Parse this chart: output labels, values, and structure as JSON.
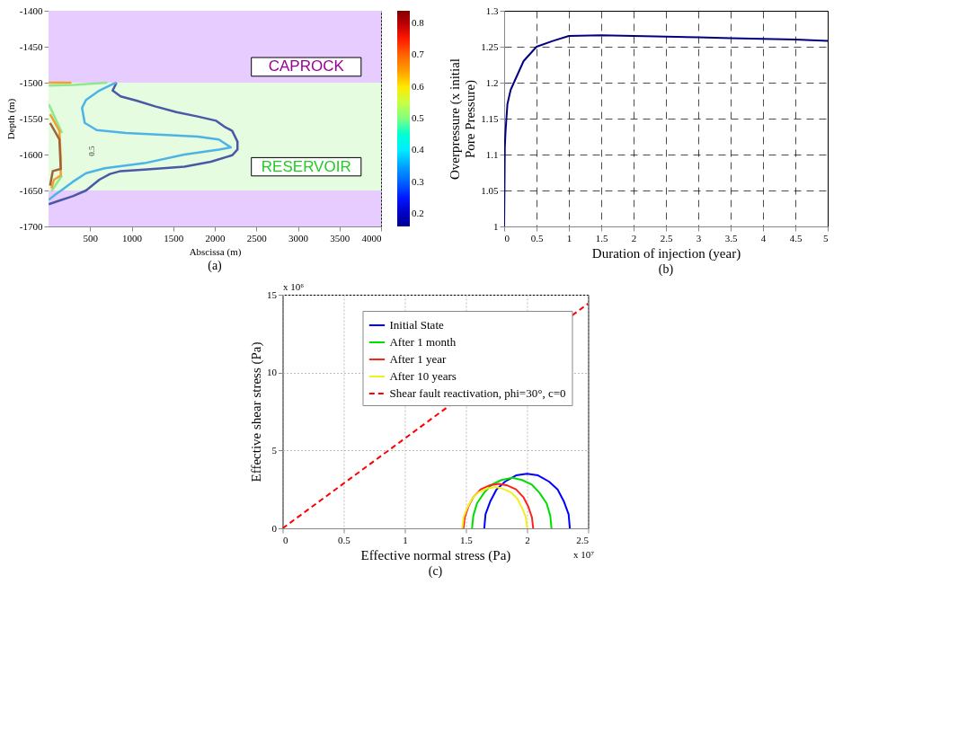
{
  "chart_data": [
    {
      "type": "line",
      "xlabel": "Abscissa (m)",
      "ylabel": "Depth (m)",
      "xlim": [
        0,
        4000
      ],
      "xticks": [
        500,
        1000,
        1500,
        2000,
        2500,
        3000,
        3500,
        4000
      ],
      "ylim": [
        -1700,
        -1400
      ],
      "yticks": [
        -1400,
        -1450,
        -1500,
        -1550,
        -1600,
        -1650,
        -1700
      ],
      "grid": true,
      "clim": [
        0.16,
        0.84
      ],
      "cticks": [
        0.2,
        0.3,
        0.4,
        0.5,
        0.6,
        0.7,
        0.8
      ],
      "bands": [
        {
          "axis": "y",
          "from": -1500,
          "to": -1400,
          "label": "CAPROCK",
          "color": "#e6ccff"
        },
        {
          "axis": "y",
          "from": -1650,
          "to": -1500,
          "label": "RESERVOIR",
          "color": "#e6fce0"
        },
        {
          "axis": "y",
          "from": -1700,
          "to": -1650,
          "color": "#e6ccff"
        }
      ],
      "annotations": [
        "0.5",
        "(a)"
      ],
      "series": [
        {
          "color": "#4a58a8",
          "x": [
            818,
            771,
            867,
            1058,
            1282,
            1538,
            1793,
            2017,
            2113,
            2209,
            2273,
            2273,
            2209,
            1953,
            1634,
            1154,
            867,
            739,
            611,
            515,
            451,
            291,
            131,
            3
          ],
          "values": [
            -1500,
            -1511,
            -1519,
            -1525,
            -1533,
            -1541,
            -1547,
            -1553,
            -1561,
            -1567,
            -1582,
            -1593,
            -1601,
            -1610,
            -1617,
            -1621,
            -1623,
            -1627,
            -1635,
            -1644,
            -1650,
            -1658,
            -1664,
            -1669
          ]
        },
        {
          "color": "#4db3e6",
          "x": [
            818,
            771,
            611,
            451,
            403,
            435,
            579,
            930,
            1474,
            1793,
            2049,
            2193,
            2049,
            1634,
            1154,
            675,
            451,
            291,
            163,
            67,
            3
          ],
          "values": [
            -1500,
            -1502,
            -1511,
            -1524,
            -1535,
            -1556,
            -1566,
            -1570,
            -1573,
            -1575,
            -1579,
            -1590,
            -1593,
            -1600,
            -1612,
            -1619,
            -1626,
            -1638,
            -1649,
            -1657,
            -1663
          ]
        },
        {
          "color": "#8fe88f",
          "x": [
            3,
            300,
            707
          ],
          "values": [
            -1504,
            -1503,
            -1500
          ]
        },
        {
          "color": "#8fe88f",
          "x": [
            3,
            163
          ],
          "values": [
            -1530,
            -1570
          ]
        },
        {
          "color": "#8fe88f",
          "x": [
            163,
            35
          ],
          "values": [
            -1629,
            -1651
          ]
        },
        {
          "color": "#f0a030",
          "x": [
            3,
            275
          ],
          "values": [
            -1500,
            -1500
          ]
        },
        {
          "color": "#f0a030",
          "x": [
            19,
            131,
            147,
            147,
            67,
            35
          ],
          "values": [
            -1544,
            -1567,
            -1604,
            -1629,
            -1635,
            -1647
          ]
        },
        {
          "color": "#a0623a",
          "x": [
            19,
            131,
            147,
            51,
            19
          ],
          "values": [
            -1556,
            -1579,
            -1620,
            -1623,
            -1643
          ]
        }
      ]
    },
    {
      "type": "line",
      "xlabel": "Duration of injection (year)",
      "ylabel": "Overpressure (x initial Pore Pressure)",
      "xlim": [
        0,
        5
      ],
      "xticks": [
        0,
        0.5,
        1,
        1.5,
        2,
        2.5,
        3,
        3.5,
        4,
        4.5,
        5
      ],
      "ylim": [
        1,
        1.3
      ],
      "yticks": [
        1,
        1.05,
        1.1,
        1.15,
        1.2,
        1.25,
        1.3
      ],
      "grid": true,
      "annotations": [
        "(b)"
      ],
      "x": [
        0,
        0.01,
        0.02,
        0.05,
        0.1,
        0.15,
        0.2,
        0.3,
        0.4,
        0.5,
        0.75,
        1,
        1.5,
        2,
        2.5,
        3,
        3.5,
        4,
        4.5,
        5
      ],
      "values": [
        1,
        1.11,
        1.13,
        1.17,
        1.19,
        1.2,
        1.21,
        1.23,
        1.24,
        1.25,
        1.258,
        1.265,
        1.266,
        1.265,
        1.264,
        1.263,
        1.262,
        1.261,
        1.26,
        1.258
      ],
      "color": "#000080"
    },
    {
      "type": "line",
      "xlabel": "Effective normal stress (Pa)",
      "ylabel": "Effective shear stress (Pa)",
      "xlim": [
        0,
        2.5
      ],
      "xticks": [
        0,
        0.5,
        1,
        1.5,
        2,
        2.5
      ],
      "ylim": [
        0,
        15
      ],
      "yticks": [
        0,
        5,
        10,
        15
      ],
      "grid": true,
      "legend": "top right",
      "annotations": [
        "x 10⁶",
        "x 10⁷",
        "(c)"
      ],
      "series": [
        {
          "name": "Initial State",
          "color": "#0000ff",
          "x": [
            2.35,
            2.34,
            2.3,
            2.25,
            2.18,
            2.09,
            2.0,
            1.91,
            1.82,
            1.75,
            1.7,
            1.66,
            1.65
          ],
          "values": [
            0,
            0.9,
            1.75,
            2.5,
            3.0,
            3.4,
            3.5,
            3.4,
            3.0,
            2.5,
            1.75,
            0.9,
            0
          ]
        },
        {
          "name": "After 1 month",
          "color": "#00dd00",
          "x": [
            2.2,
            2.19,
            2.16,
            2.1,
            2.04,
            1.96,
            1.88,
            1.79,
            1.71,
            1.65,
            1.59,
            1.56,
            1.55
          ],
          "values": [
            0,
            0.8,
            1.6,
            2.3,
            2.8,
            3.1,
            3.25,
            3.1,
            2.8,
            2.3,
            1.6,
            0.8,
            0
          ]
        },
        {
          "name": "After 1 year",
          "color": "#ff2020",
          "x": [
            2.05,
            2.04,
            2.01,
            1.97,
            1.91,
            1.84,
            1.77,
            1.69,
            1.62,
            1.56,
            1.52,
            1.49,
            1.48
          ],
          "values": [
            0,
            0.7,
            1.4,
            2.0,
            2.5,
            2.75,
            2.85,
            2.75,
            2.5,
            2.0,
            1.4,
            0.7,
            0
          ]
        },
        {
          "name": "After 10 years",
          "color": "#f0f020",
          "x": [
            2.0,
            1.99,
            1.96,
            1.92,
            1.87,
            1.8,
            1.74,
            1.67,
            1.6,
            1.55,
            1.51,
            1.48,
            1.47
          ],
          "values": [
            0,
            0.7,
            1.3,
            1.9,
            2.3,
            2.55,
            2.65,
            2.55,
            2.3,
            1.9,
            1.3,
            0.7,
            0
          ]
        },
        {
          "name": "Shear fault reactivation, phi=30°, c=0",
          "color": "#ff0000",
          "line_style": "dashed",
          "x": [
            0,
            2.5
          ],
          "values": [
            0,
            14.43
          ]
        }
      ]
    }
  ]
}
